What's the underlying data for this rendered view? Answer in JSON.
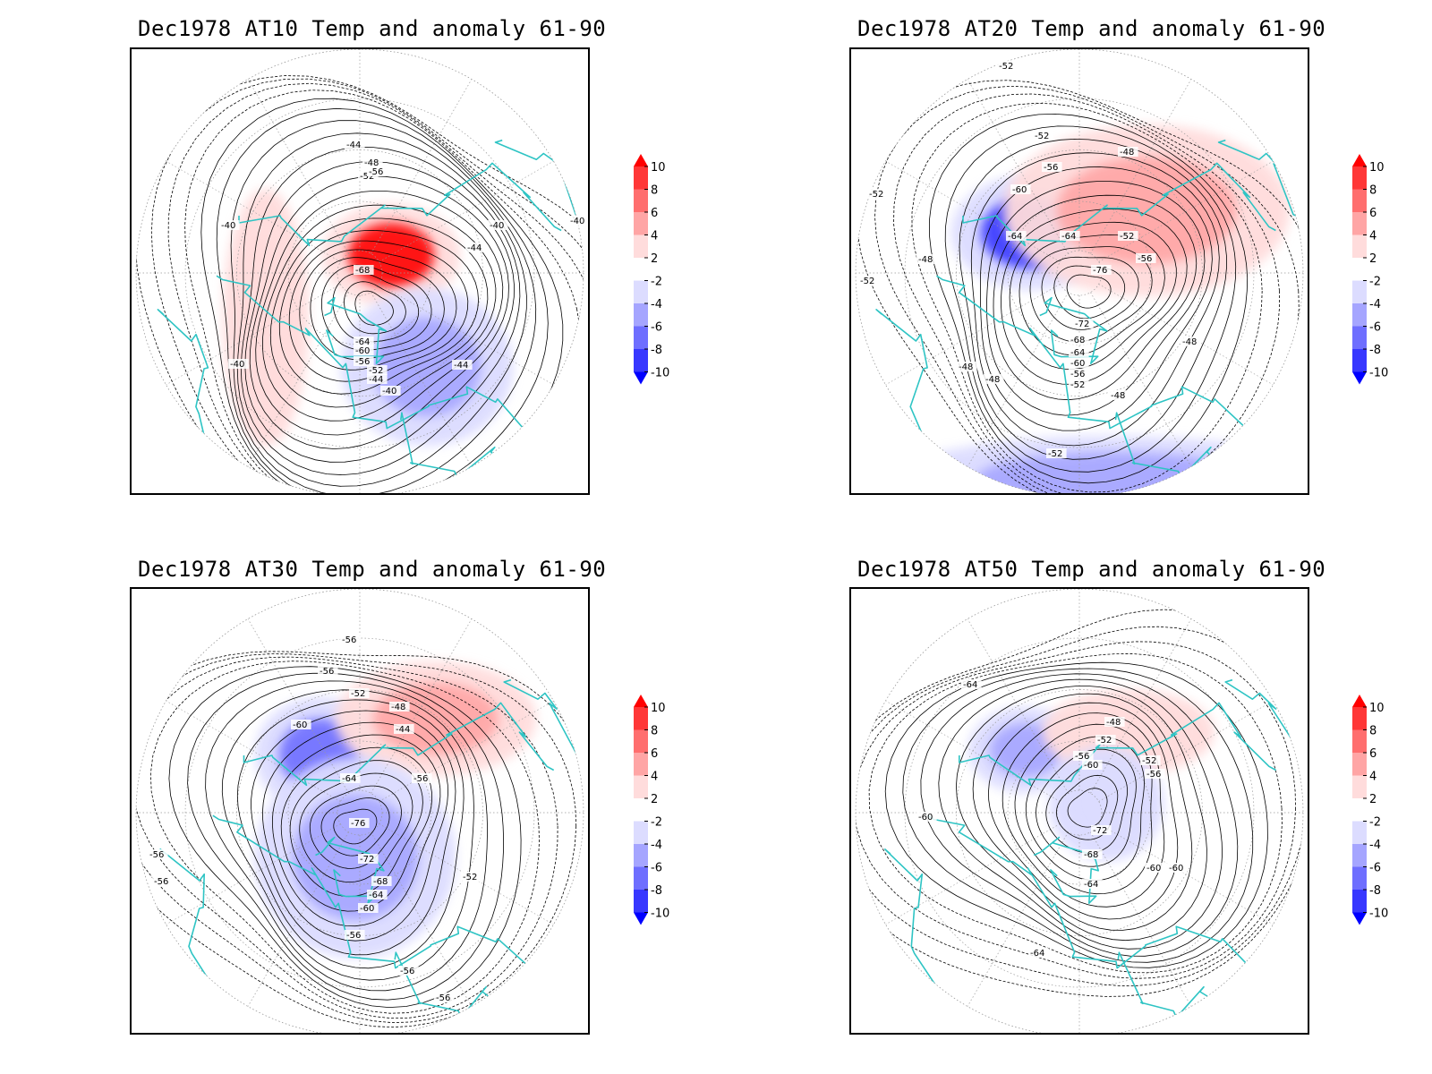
{
  "colors": {
    "anomaly_scale": [
      "#0000ff",
      "#3737ff",
      "#6e6eff",
      "#a5a5ff",
      "#dcdcff",
      "#ffffff",
      "#ffdcdc",
      "#ffa5a5",
      "#ff6e6e",
      "#ff3737",
      "#ff0000"
    ],
    "coastline": "#2ec4c4"
  },
  "colorbar": {
    "tick_labels": [
      "10",
      "8",
      "6",
      "4",
      "2",
      "-2",
      "-4",
      "-6",
      "-8",
      "-10"
    ]
  },
  "panels": [
    {
      "title": "Dec1978 AT10 Temp and anomaly 61-90",
      "contour_labels": [
        "-44",
        "-48",
        "-52",
        "-56",
        "-40",
        "-40",
        "-40",
        "-44",
        "-68",
        "-64",
        "-60",
        "-56",
        "-52",
        "-44",
        "-40",
        "-40",
        "-44"
      ],
      "anomalies": [
        {
          "sign": "warm",
          "value": 10
        },
        {
          "sign": "cold",
          "value": -4
        },
        {
          "sign": "warm",
          "value": 2
        }
      ]
    },
    {
      "title": "Dec1978 AT20 Temp and anomaly 61-90",
      "contour_labels": [
        "-52",
        "-52",
        "-52",
        "-56",
        "-60",
        "-64",
        "-64",
        "-52",
        "-56",
        "-76",
        "-72",
        "-68",
        "-64",
        "-60",
        "-56",
        "-52",
        "-48",
        "-48",
        "-48",
        "-48",
        "-52",
        "-48",
        "-52",
        "-48"
      ],
      "anomalies": [
        {
          "sign": "cold",
          "value": -8
        },
        {
          "sign": "warm",
          "value": 4
        },
        {
          "sign": "cold",
          "value": -4
        }
      ]
    },
    {
      "title": "Dec1978 AT30 Temp and anomaly 61-90",
      "contour_labels": [
        "-56",
        "-56",
        "-60",
        "-52",
        "-48",
        "-44",
        "-64",
        "-56",
        "-76",
        "-72",
        "-68",
        "-64",
        "-60",
        "-56",
        "-56",
        "-56",
        "-52",
        "-56",
        "-56"
      ],
      "anomalies": [
        {
          "sign": "cold",
          "value": -6
        },
        {
          "sign": "warm",
          "value": 4
        },
        {
          "sign": "cold",
          "value": -4
        }
      ]
    },
    {
      "title": "Dec1978 AT50 Temp and anomaly 61-90",
      "contour_labels": [
        "-64",
        "-48",
        "-52",
        "-56",
        "-60",
        "-52",
        "-56",
        "-60",
        "-72",
        "-68",
        "-64",
        "-60",
        "-60",
        "-64"
      ],
      "anomalies": [
        {
          "sign": "cold",
          "value": -4
        },
        {
          "sign": "warm",
          "value": 2
        },
        {
          "sign": "cold",
          "value": -2
        }
      ]
    }
  ]
}
